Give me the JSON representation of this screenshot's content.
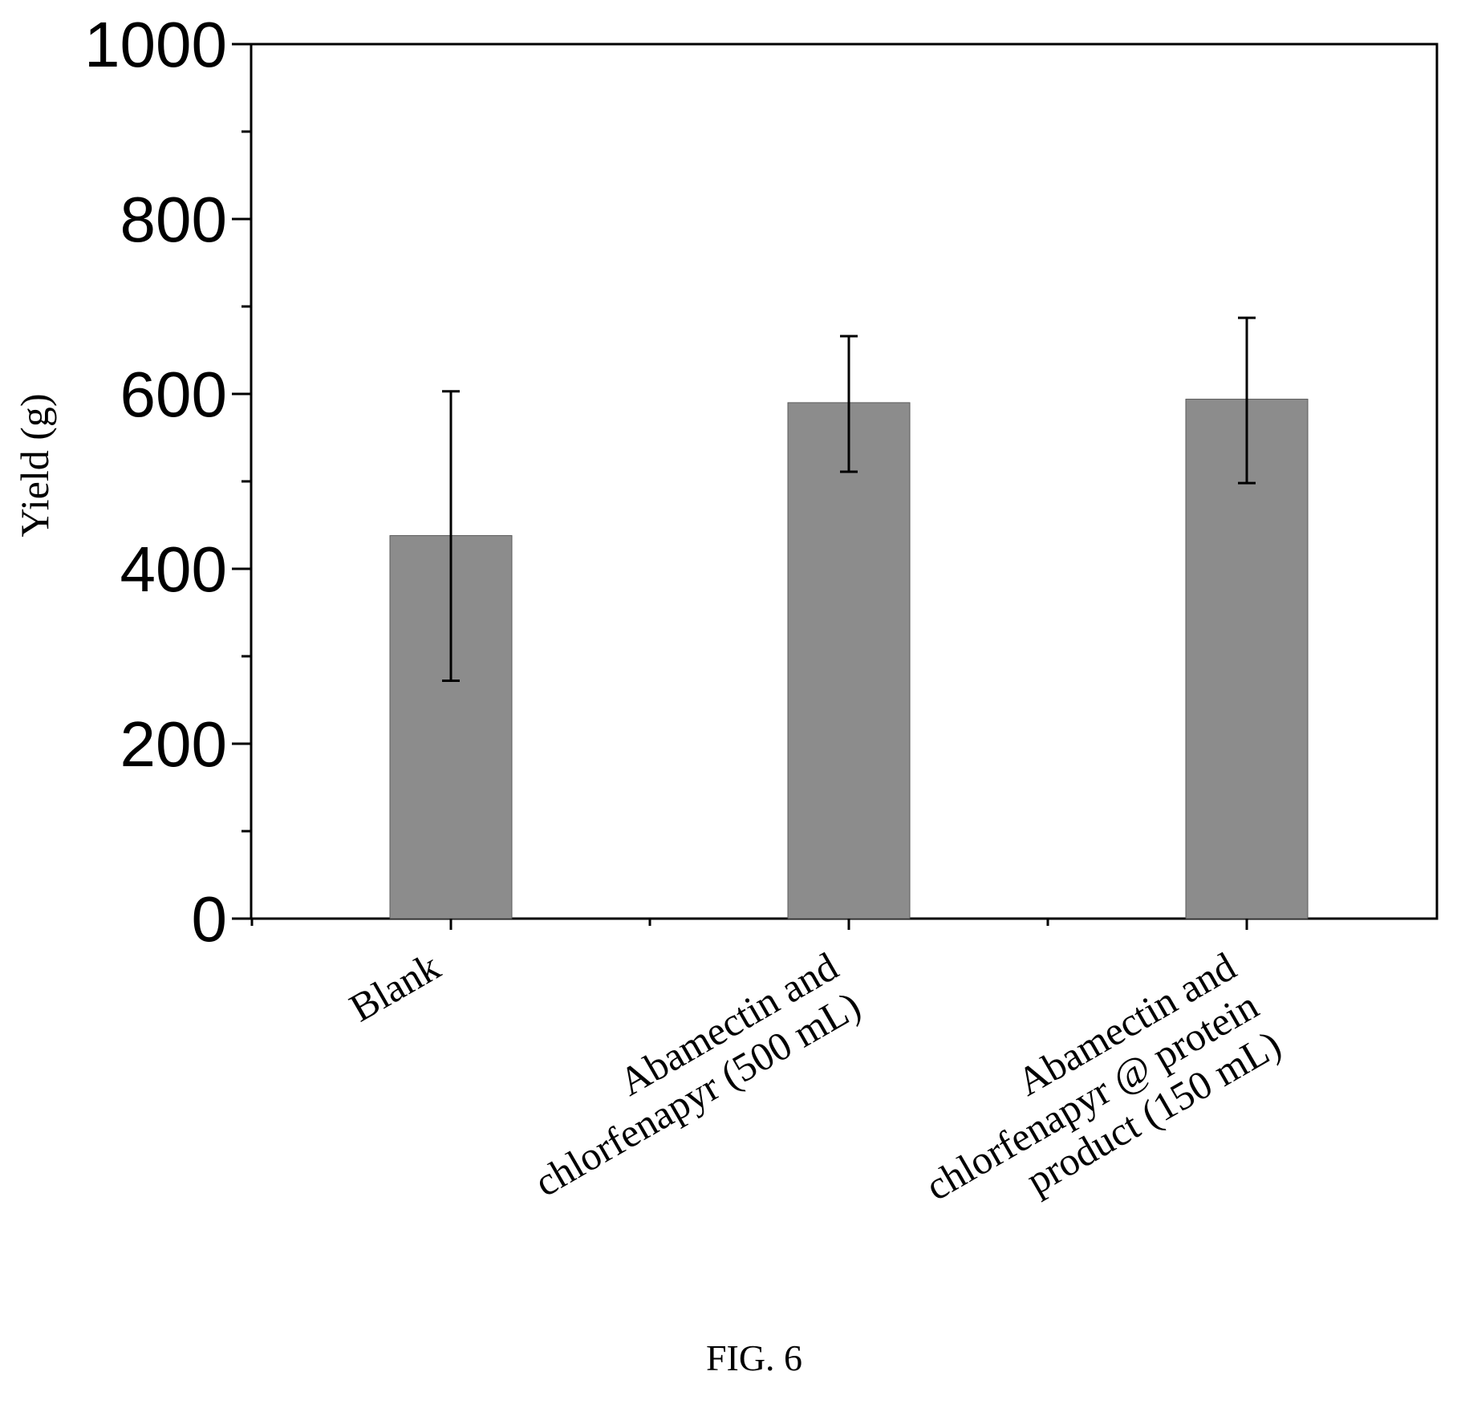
{
  "chart_data": {
    "type": "bar",
    "categories": [
      [
        "Blank"
      ],
      [
        "Abamectin and",
        "chlorfenapyr (500 mL)"
      ],
      [
        "Abamectin and",
        "chlorfenapyr @ protein",
        "product (150 mL)"
      ]
    ],
    "values": [
      438,
      590,
      594
    ],
    "error_upper": [
      603,
      666,
      687
    ],
    "error_lower": [
      272,
      511,
      498
    ],
    "ylabel": "Yield (g)",
    "xlabel": "",
    "ylim": [
      0,
      1000
    ],
    "y_major_ticks": [
      0,
      200,
      400,
      600,
      800,
      1000
    ],
    "y_minor_ticks": [
      100,
      300,
      500,
      700,
      900
    ],
    "bar_color": "#8c8c8c",
    "grid": false,
    "legend": "none"
  },
  "caption": "FIG. 6"
}
